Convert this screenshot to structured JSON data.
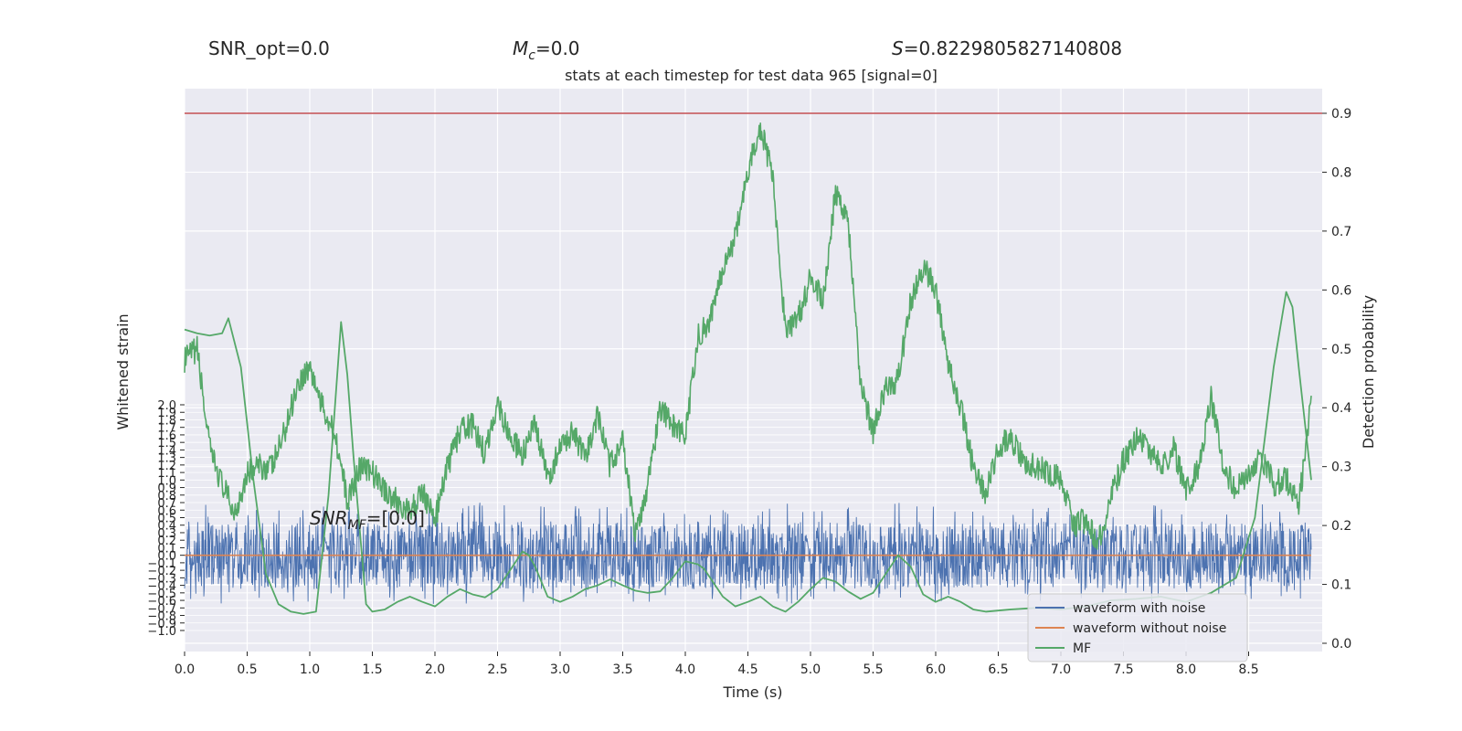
{
  "header": {
    "snr_opt": "SNR_opt=0.0",
    "mc_symbol": "M",
    "mc_sub": "c",
    "mc_value": "=0.0",
    "s_symbol": "S",
    "s_value": "=0.8229805827140808"
  },
  "annotation": {
    "snr_mf_prefix": "SNR",
    "snr_mf_sub": "MF",
    "snr_mf_value": "=[0.0]"
  },
  "colors": {
    "plot_bg": "#eaeaf2",
    "grid": "#ffffff",
    "noise": "#4c72b0",
    "clean": "#dd8452",
    "mf": "#55a868",
    "threshold": "#c44e52"
  },
  "chart_data": {
    "type": "line",
    "title": "stats at each timestep for test data 965 [signal=0]",
    "xlabel": "Time (s)",
    "ylabel_left": "Whitened strain",
    "ylabel_right": "Detection probability",
    "xlim": [
      0.0,
      9.0
    ],
    "x_ticks": [
      "0.0",
      "0.5",
      "1.0",
      "1.5",
      "2.0",
      "2.5",
      "3.0",
      "3.5",
      "4.0",
      "4.5",
      "5.0",
      "5.5",
      "6.0",
      "6.5",
      "7.0",
      "7.5",
      "8.0",
      "8.5"
    ],
    "left_ylim": [
      -1.0,
      2.0
    ],
    "left_ticks": [
      "−1.0",
      "−0.9",
      "−0.8",
      "−0.7",
      "−0.6",
      "−0.5",
      "−0.4",
      "−0.3",
      "−0.2",
      "−0.1",
      "0.0",
      "0.1",
      "0.2",
      "0.3",
      "0.4",
      "0.5",
      "0.6",
      "0.7",
      "0.8",
      "0.9",
      "1.0",
      "1.1",
      "1.2",
      "1.3",
      "1.4",
      "1.5",
      "1.6",
      "1.7",
      "1.8",
      "1.9",
      "2.0"
    ],
    "right_ylim": [
      -0.015,
      0.925
    ],
    "right_ticks": [
      "0.0",
      "0.1",
      "0.2",
      "0.3",
      "0.4",
      "0.5",
      "0.6",
      "0.7",
      "0.8",
      "0.9"
    ],
    "threshold": 0.9,
    "legend_position": "lower-right",
    "series": [
      {
        "name": "waveform with noise",
        "axis": "left",
        "kind": "noise",
        "envelope": [
          -0.45,
          0.45
        ],
        "peak_range": [
          -0.65,
          0.7
        ]
      },
      {
        "name": "waveform without noise",
        "axis": "left",
        "x": [
          0.0,
          9.0
        ],
        "values": [
          0.0,
          0.0
        ]
      },
      {
        "name": "MF",
        "axis": "left",
        "x": [
          0.0,
          0.1,
          0.2,
          0.3,
          0.35,
          0.45,
          0.55,
          0.65,
          0.75,
          0.85,
          0.95,
          1.05,
          1.15,
          1.25,
          1.3,
          1.35,
          1.45,
          1.5,
          1.6,
          1.7,
          1.8,
          1.9,
          2.0,
          2.1,
          2.2,
          2.3,
          2.4,
          2.5,
          2.6,
          2.7,
          2.75,
          2.8,
          2.9,
          3.0,
          3.1,
          3.2,
          3.3,
          3.4,
          3.5,
          3.6,
          3.7,
          3.8,
          3.9,
          4.0,
          4.1,
          4.15,
          4.3,
          4.4,
          4.5,
          4.6,
          4.7,
          4.8,
          4.9,
          5.0,
          5.1,
          5.2,
          5.3,
          5.4,
          5.5,
          5.6,
          5.7,
          5.8,
          5.9,
          6.0,
          6.1,
          6.2,
          6.3,
          6.4,
          6.6,
          6.8,
          7.0,
          7.2,
          7.4,
          7.6,
          7.8,
          8.0,
          8.2,
          8.4,
          8.55,
          8.7,
          8.8,
          8.85,
          8.9,
          9.0
        ],
        "values": [
          3.0,
          2.95,
          2.92,
          2.95,
          3.15,
          2.5,
          1.0,
          -0.25,
          -0.65,
          -0.75,
          -0.78,
          -0.75,
          0.8,
          3.1,
          2.4,
          1.3,
          -0.65,
          -0.75,
          -0.72,
          -0.62,
          -0.55,
          -0.62,
          -0.68,
          -0.55,
          -0.45,
          -0.52,
          -0.56,
          -0.45,
          -0.2,
          0.05,
          0.0,
          -0.15,
          -0.55,
          -0.62,
          -0.55,
          -0.45,
          -0.4,
          -0.32,
          -0.4,
          -0.47,
          -0.5,
          -0.48,
          -0.3,
          -0.08,
          -0.12,
          -0.18,
          -0.55,
          -0.68,
          -0.62,
          -0.55,
          -0.68,
          -0.75,
          -0.62,
          -0.45,
          -0.3,
          -0.35,
          -0.48,
          -0.58,
          -0.5,
          -0.25,
          0.0,
          -0.15,
          -0.52,
          -0.62,
          -0.55,
          -0.62,
          -0.72,
          -0.75,
          -0.72,
          -0.7,
          -0.72,
          -0.68,
          -0.6,
          -0.58,
          -0.55,
          -0.62,
          -0.5,
          -0.3,
          0.5,
          2.5,
          3.5,
          3.3,
          2.5,
          1.0
        ]
      },
      {
        "name": "detection_probability",
        "axis": "right",
        "x": [
          0.0,
          0.1,
          0.2,
          0.3,
          0.4,
          0.5,
          0.6,
          0.7,
          0.8,
          0.9,
          1.0,
          1.1,
          1.2,
          1.3,
          1.4,
          1.5,
          1.6,
          1.7,
          1.8,
          1.9,
          2.0,
          2.1,
          2.2,
          2.3,
          2.4,
          2.5,
          2.6,
          2.7,
          2.8,
          2.9,
          3.0,
          3.1,
          3.2,
          3.3,
          3.4,
          3.5,
          3.6,
          3.7,
          3.8,
          3.9,
          4.0,
          4.1,
          4.2,
          4.3,
          4.4,
          4.5,
          4.6,
          4.7,
          4.8,
          4.9,
          5.0,
          5.1,
          5.2,
          5.3,
          5.4,
          5.5,
          5.6,
          5.7,
          5.8,
          5.9,
          6.0,
          6.1,
          6.2,
          6.3,
          6.4,
          6.5,
          6.6,
          6.7,
          6.8,
          6.9,
          7.0,
          7.1,
          7.2,
          7.3,
          7.4,
          7.5,
          7.6,
          7.7,
          7.8,
          7.9,
          8.0,
          8.1,
          8.2,
          8.3,
          8.4,
          8.5,
          8.6,
          8.7,
          8.8,
          8.9,
          9.0
        ],
        "values": [
          0.48,
          0.5,
          0.33,
          0.27,
          0.22,
          0.29,
          0.3,
          0.3,
          0.36,
          0.44,
          0.47,
          0.4,
          0.36,
          0.24,
          0.3,
          0.29,
          0.26,
          0.24,
          0.22,
          0.26,
          0.21,
          0.3,
          0.36,
          0.37,
          0.32,
          0.41,
          0.35,
          0.32,
          0.37,
          0.28,
          0.33,
          0.36,
          0.31,
          0.39,
          0.3,
          0.35,
          0.18,
          0.27,
          0.4,
          0.37,
          0.35,
          0.52,
          0.55,
          0.64,
          0.69,
          0.8,
          0.88,
          0.79,
          0.53,
          0.55,
          0.62,
          0.58,
          0.77,
          0.72,
          0.44,
          0.36,
          0.43,
          0.45,
          0.58,
          0.64,
          0.6,
          0.48,
          0.4,
          0.3,
          0.25,
          0.33,
          0.35,
          0.31,
          0.3,
          0.29,
          0.28,
          0.2,
          0.21,
          0.17,
          0.25,
          0.31,
          0.35,
          0.33,
          0.3,
          0.33,
          0.26,
          0.3,
          0.42,
          0.3,
          0.26,
          0.29,
          0.32,
          0.27,
          0.28,
          0.23,
          0.42
        ]
      }
    ]
  }
}
